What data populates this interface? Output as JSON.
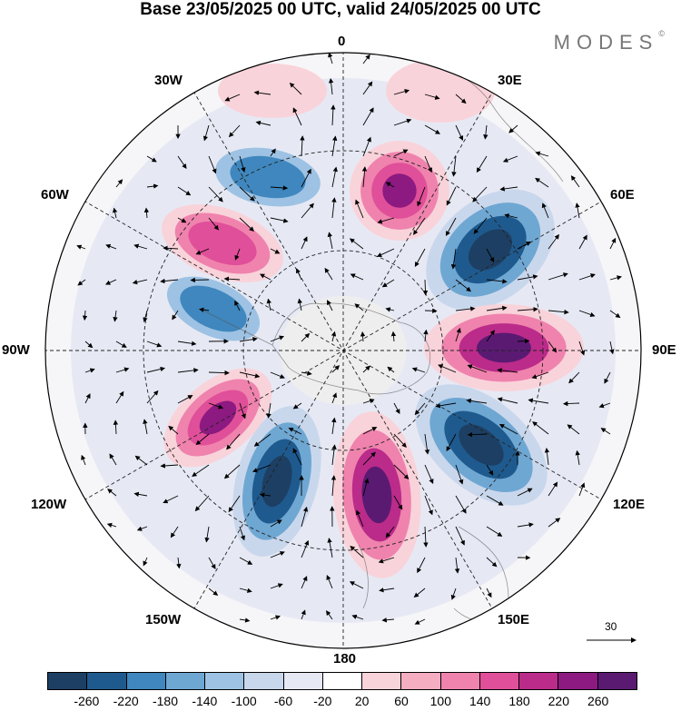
{
  "title": "Base 23/05/2025 00 UTC, valid 24/05/2025 00 UTC",
  "logo": {
    "text": "MODES",
    "mark": "©"
  },
  "lon_labels": {
    "n": "0",
    "ne": "30E",
    "e1": "60E",
    "e": "90E",
    "se1": "120E",
    "se": "150E",
    "s": "180",
    "sw": "150W",
    "sw1": "120W",
    "w": "90W",
    "nw1": "60W",
    "nw": "30W"
  },
  "vector_reference": {
    "value": "30"
  },
  "colorbar": {
    "colors": [
      "#1d3f63",
      "#1f5a8e",
      "#3f87be",
      "#6fa7d3",
      "#9ec2e3",
      "#c9d7ec",
      "#e6e9f4",
      "#ffffff",
      "#f9d3da",
      "#f4adc1",
      "#ef83ad",
      "#e04f99",
      "#bb2b8a",
      "#8c1a80",
      "#5a1a72"
    ],
    "ticks": [
      "-260",
      "-220",
      "-180",
      "-140",
      "-100",
      "-60",
      "-20",
      "20",
      "60",
      "100",
      "140",
      "180",
      "220",
      "260"
    ]
  },
  "map_features": {
    "projection": "polar stereographic, south pole centred",
    "field": "height anomaly (shaded) with wind vectors",
    "anomaly_centres": [
      {
        "sign": "negative",
        "strength": "strong",
        "sector": "40E-60E"
      },
      {
        "sign": "positive",
        "strength": "strong",
        "sector": "90E"
      },
      {
        "sign": "negative",
        "strength": "strong",
        "sector": "120E-135E"
      },
      {
        "sign": "positive",
        "strength": "strong",
        "sector": "170E-180"
      },
      {
        "sign": "negative",
        "strength": "strong",
        "sector": "150W"
      },
      {
        "sign": "positive",
        "strength": "moderate",
        "sector": "120W"
      },
      {
        "sign": "negative",
        "strength": "moderate",
        "sector": "75W"
      },
      {
        "sign": "positive",
        "strength": "moderate",
        "sector": "45W"
      },
      {
        "sign": "negative",
        "strength": "moderate",
        "sector": "20W"
      },
      {
        "sign": "positive",
        "strength": "moderate",
        "sector": "10E"
      }
    ]
  }
}
